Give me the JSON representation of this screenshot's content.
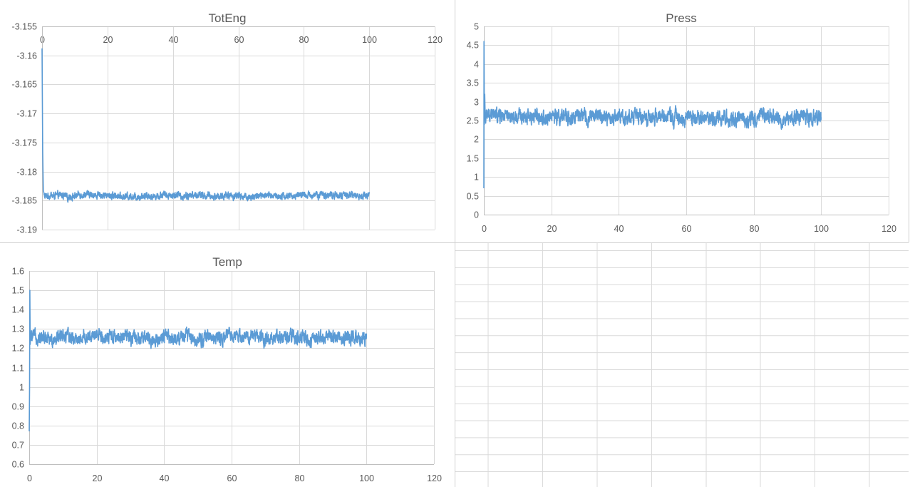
{
  "colors": {
    "series": "#5B9BD5",
    "grid": "#D9D9D9",
    "text": "#595959",
    "cell_grid": "#DADADA"
  },
  "chart_data": [
    {
      "type": "line",
      "title": "TotEng",
      "xlabel": "",
      "ylabel": "",
      "xlim": [
        0,
        120
      ],
      "ylim": [
        -3.19,
        -3.155
      ],
      "x_ticks": [
        "0",
        "20",
        "40",
        "60",
        "80",
        "100",
        "120"
      ],
      "y_ticks": [
        "-3.155",
        "-3.16",
        "-3.165",
        "-3.17",
        "-3.175",
        "-3.18",
        "-3.185",
        "-3.19"
      ],
      "grid": true,
      "legend": "none",
      "series": [
        {
          "name": "TotEng",
          "initial_points": [
            [
              0,
              -3.1588
            ],
            [
              0.2,
              -3.1765
            ],
            [
              0.4,
              -3.1832
            ],
            [
              0.6,
              -3.1838
            ]
          ],
          "steady": {
            "x_from": 0.6,
            "x_to": 100,
            "mean": -3.18415,
            "noise_amplitude": 0.0005,
            "min": -3.1856,
            "max": -3.1829
          }
        }
      ]
    },
    {
      "type": "line",
      "title": "Press",
      "xlabel": "",
      "ylabel": "",
      "xlim": [
        0,
        120
      ],
      "ylim": [
        0,
        5
      ],
      "x_ticks": [
        "0",
        "20",
        "40",
        "60",
        "80",
        "100",
        "120"
      ],
      "y_ticks": [
        "5",
        "4.5",
        "4",
        "3.5",
        "3",
        "2.5",
        "2",
        "1.5",
        "1",
        "0.5",
        "0"
      ],
      "grid": true,
      "legend": "none",
      "series": [
        {
          "name": "Press",
          "initial_points": [
            [
              0,
              0.7
            ],
            [
              0.05,
              4.6
            ],
            [
              0.15,
              2.4
            ],
            [
              0.25,
              3.2
            ],
            [
              0.4,
              2.6
            ]
          ],
          "steady": {
            "x_from": 0.4,
            "x_to": 100,
            "mean": 2.6,
            "noise_amplitude": 0.17,
            "min": 2.1,
            "max": 3.05
          }
        }
      ]
    },
    {
      "type": "line",
      "title": "Temp",
      "xlabel": "",
      "ylabel": "",
      "xlim": [
        0,
        120
      ],
      "ylim": [
        0.6,
        1.6
      ],
      "x_ticks": [
        "0",
        "20",
        "40",
        "60",
        "80",
        "100",
        "120"
      ],
      "y_ticks": [
        "1.6",
        "1.5",
        "1.4",
        "1.3",
        "1.2",
        "1.1",
        "1",
        "0.9",
        "0.8",
        "0.7",
        "0.6"
      ],
      "grid": true,
      "legend": "none",
      "series": [
        {
          "name": "Temp",
          "initial_points": [
            [
              0,
              0.77
            ],
            [
              0.1,
              1.0
            ],
            [
              0.2,
              1.5
            ],
            [
              0.3,
              1.22
            ],
            [
              0.45,
              1.27
            ]
          ],
          "steady": {
            "x_from": 0.45,
            "x_to": 100,
            "mean": 1.255,
            "noise_amplitude": 0.03,
            "min": 1.18,
            "max": 1.33
          }
        }
      ]
    }
  ]
}
